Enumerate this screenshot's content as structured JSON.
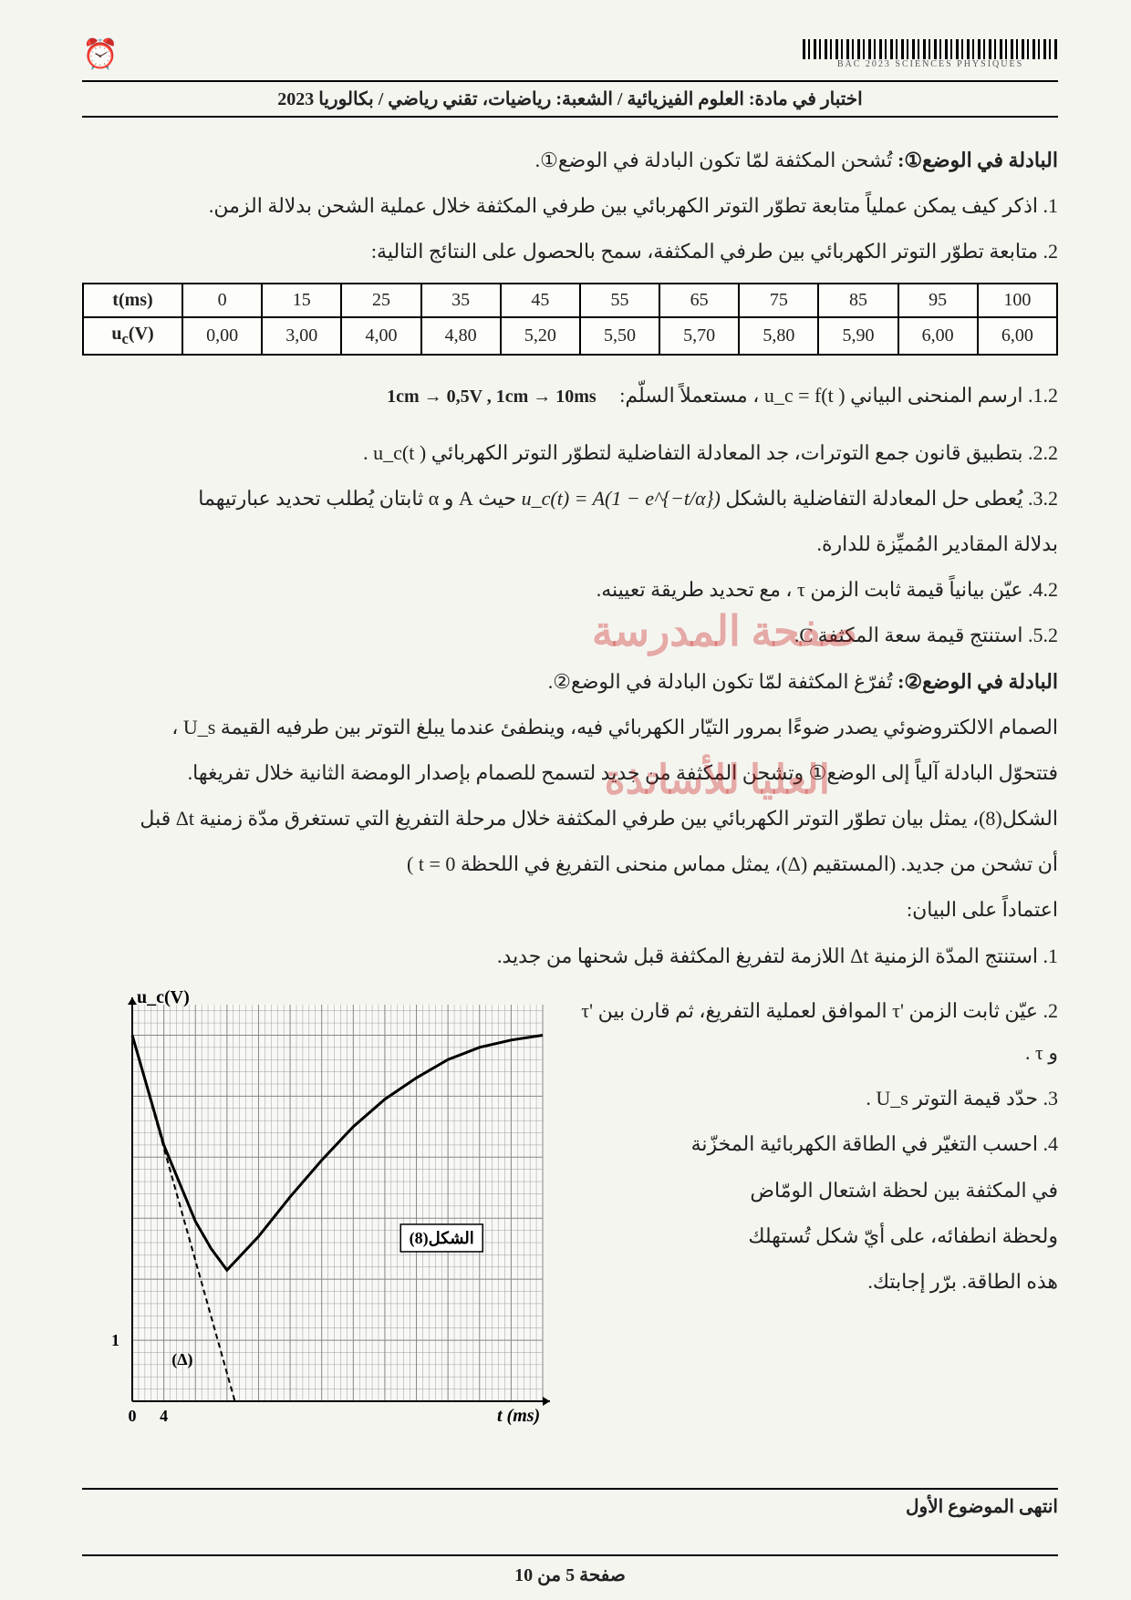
{
  "header": {
    "barcode_caption": "BAC 2023 SCIENCES PHYSIQUES",
    "title": "اختبار في مادة: العلوم الفيزيائية / الشعبة: رياضيات، تقني رياضي / بكالوريا 2023"
  },
  "intro": {
    "line1_bold": "البادلة في الوضع①:",
    "line1_rest": " تُشحن المكثفة لمّا تكون البادلة في الوضع①.",
    "line2": "1. اذكر كيف يمكن عملياً متابعة تطوّر التوتر الكهربائي بين طرفي المكثفة خلال عملية الشحن بدلالة الزمن.",
    "line3": "2. متابعة تطوّر التوتر الكهربائي بين طرفي المكثفة، سمح بالحصول على النتائج التالية:"
  },
  "table": {
    "columns": [
      "t(ms)",
      "0",
      "15",
      "25",
      "35",
      "45",
      "55",
      "65",
      "75",
      "85",
      "95",
      "100"
    ],
    "row_label": "u_c(V)",
    "row": [
      "0,00",
      "3,00",
      "4,00",
      "4,80",
      "5,20",
      "5,50",
      "5,70",
      "5,80",
      "5,90",
      "6,00",
      "6,00"
    ],
    "border_color": "#000000",
    "bg_color": "#fdfdfa"
  },
  "scale": "1cm → 0,5V  ,  1cm → 10ms",
  "q": {
    "q12": "1.2. ارسم المنحنى البياني ( u_c = f(t ، مستعملاً السلّم:",
    "q22": "2.2. بتطبيق قانون جمع التوترات، جد المعادلة التفاضلية لتطوّر التوتر الكهربائي ( u_c(t .",
    "q32_a": "3.2. يُعطى حل المعادلة التفاضلية بالشكل ",
    "q32_eq": "u_c(t) = A(1 − e^{−t/α})",
    "q32_b": " حيث A و α ثابتان يُطلب تحديد عبارتيهما",
    "q32_c": "بدلالة المقادير المُميِّزة للدارة.",
    "q42": "4.2. عيّن بيانياً قيمة ثابت الزمن τ ، مع تحديد طريقة تعيينه.",
    "q52": "5.2. استنتج قيمة سعة المكثفة C."
  },
  "part2": {
    "head_bold": "البادلة في الوضع②:",
    "head_rest": " تُفرّغ المكثفة لمّا تكون البادلة في الوضع②.",
    "p1": "الصمام الالكتروضوئي يصدر ضوءًا بمرور التيّار الكهربائي فيه، وينطفئ عندما يبلغ التوتر بين طرفيه القيمة U_s ،",
    "p2": "فتتحوّل البادلة آلياً إلى الوضع① وتشحن المكثفة من جديد لتسمح للصمام بإصدار الومضة الثانية خلال تفريغها.",
    "p3": "الشكل(8)، يمثل بيان تطوّر التوتر الكهربائي بين طرفي المكثفة خلال مرحلة التفريغ التي تستغرق مدّة زمنية Δt قبل",
    "p4": "أن تشحن من جديد. (المستقيم (Δ)، يمثل مماس منحنى التفريغ في اللحظة t = 0 )",
    "p5": "اعتماداً على البيان:",
    "l1": "1. استنتج المدّة الزمنية Δt اللازمة لتفريغ المكثفة قبل شحنها من جديد.",
    "l2": "2. عيّن ثابت الزمن 'τ الموافق لعملية التفريغ، ثم قارن بين 'τ و τ .",
    "l3": "3. حدّد قيمة التوتر U_s .",
    "l4": "4. احسب التغيّر في الطاقة الكهربائية المخزّنة",
    "l4b": "في المكثفة بين لحظة اشتعال الومّاض",
    "l4c": "ولحظة انطفائه، على أيّ شكل تُستهلك",
    "l4d": "هذه الطاقة. برّر إجابتك."
  },
  "chart": {
    "type": "line",
    "x_label": "t (ms)",
    "y_label": "u_c(V)",
    "x_range": [
      0,
      52
    ],
    "y_range": [
      0,
      6.5
    ],
    "x_tick": 4,
    "y_tick": 1,
    "x_marked": [
      0,
      4
    ],
    "y_marked": [
      1
    ],
    "grid_minor": 0.8,
    "grid_color": "#888888",
    "axis_color": "#000000",
    "bg_color": "#f8f8f5",
    "curve_color": "#000000",
    "curve_width": 3,
    "tangent_dash": "6,4",
    "figure_label": "الشكل(8)",
    "delta_label": "(Δ)",
    "curve": [
      [
        0,
        6.0
      ],
      [
        4,
        4.2
      ],
      [
        8,
        2.95
      ],
      [
        10,
        2.5
      ],
      [
        12,
        2.15
      ],
      [
        16,
        2.7
      ],
      [
        20,
        3.35
      ],
      [
        24,
        3.95
      ],
      [
        28,
        4.5
      ],
      [
        32,
        4.95
      ],
      [
        36,
        5.3
      ],
      [
        40,
        5.6
      ],
      [
        44,
        5.8
      ],
      [
        48,
        5.92
      ],
      [
        52,
        6.0
      ]
    ],
    "tangent": [
      [
        0,
        6.0
      ],
      [
        13,
        0
      ]
    ]
  },
  "footer": {
    "end": "انتهى الموضوع الأول",
    "page": "صفحة 5 من 10"
  },
  "watermarks": {
    "w1": "صفحة المدرسة",
    "w2": "العليا للأساتذة"
  },
  "colors": {
    "page_bg": "#f5f5f0",
    "text": "#222222",
    "watermark": "rgba(200,30,30,0.35)"
  }
}
